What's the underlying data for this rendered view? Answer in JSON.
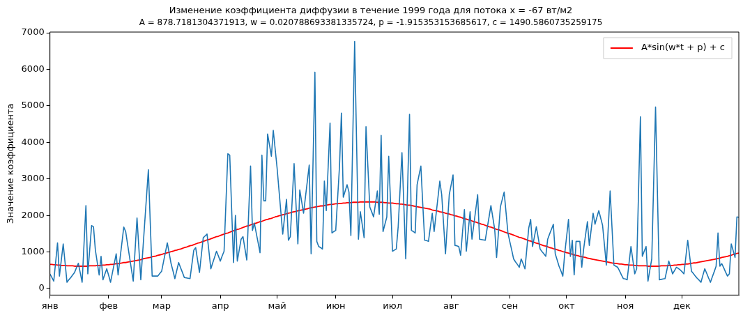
{
  "chart_data": {
    "type": "line",
    "title": "Изменение коэффициента диффузии в течение 1999 года для потока x = -67 вт/м2",
    "subtitle": "A = 878.7181304371913, w = 0.020788693381335724, p = -1.915353153685617, c = 1490.5860735259175",
    "ylabel": "Значение коэффициента",
    "legend": "top right",
    "grid": false,
    "categories": [
      "янв",
      null,
      null,
      null,
      null,
      null,
      null,
      null,
      null,
      null,
      null,
      null,
      null,
      null,
      null,
      null,
      null,
      null,
      null,
      null,
      null,
      null,
      null,
      null,
      null,
      null,
      null,
      null,
      null,
      null,
      null,
      "фев",
      null,
      null,
      null,
      null,
      null,
      null,
      null,
      null,
      null,
      null,
      null,
      null,
      null,
      null,
      null,
      null,
      null,
      null,
      null,
      null,
      null,
      null,
      null,
      null,
      null,
      null,
      null,
      "мар",
      null,
      null,
      null,
      null,
      null,
      null,
      null,
      null,
      null,
      null,
      null,
      null,
      null,
      null,
      null,
      null,
      null,
      null,
      null,
      null,
      null,
      null,
      null,
      null,
      null,
      null,
      null,
      null,
      null,
      null,
      "апр",
      null,
      null,
      null,
      null,
      null,
      null,
      null,
      null,
      null,
      null,
      null,
      null,
      null,
      null,
      null,
      null,
      null,
      null,
      null,
      null,
      null,
      null,
      null,
      null,
      null,
      null,
      null,
      null,
      null,
      "май",
      null,
      null,
      null,
      null,
      null,
      null,
      null,
      null,
      null,
      null,
      null,
      null,
      null,
      null,
      null,
      null,
      null,
      null,
      null,
      null,
      null,
      null,
      null,
      null,
      null,
      null,
      null,
      null,
      null,
      null,
      "июн",
      null,
      null,
      null,
      null,
      null,
      null,
      null,
      null,
      null,
      null,
      null,
      null,
      null,
      null,
      null,
      null,
      null,
      null,
      null,
      null,
      null,
      null,
      null,
      null,
      null,
      null,
      null,
      null,
      null,
      "июл",
      null,
      null,
      null,
      null,
      null,
      null,
      null,
      null,
      null,
      null,
      null,
      null,
      null,
      null,
      null,
      null,
      null,
      null,
      null,
      null,
      null,
      null,
      null,
      null,
      null,
      null,
      null,
      null,
      null,
      null,
      "авг",
      null,
      null,
      null,
      null,
      null,
      null,
      null,
      null,
      null,
      null,
      null,
      null,
      null,
      null,
      null,
      null,
      null,
      null,
      null,
      null,
      null,
      null,
      null,
      null,
      null,
      null,
      null,
      null,
      null,
      null,
      "сен",
      null,
      null,
      null,
      null,
      null,
      null,
      null,
      null,
      null,
      null,
      null,
      null,
      null,
      null,
      null,
      null,
      null,
      null,
      null,
      null,
      null,
      null,
      null,
      null,
      null,
      null,
      null,
      null,
      null,
      "окт",
      null,
      null,
      null,
      null,
      null,
      null,
      null,
      null,
      null,
      null,
      null,
      null,
      null,
      null,
      null,
      null,
      null,
      null,
      null,
      null,
      null,
      null,
      null,
      null,
      null,
      null,
      null,
      null,
      null,
      null,
      "ноя",
      null,
      null,
      null,
      null,
      null,
      null,
      null,
      null,
      null,
      null,
      null,
      null,
      null,
      null,
      null,
      null,
      null,
      null,
      null,
      null,
      null,
      null,
      null,
      null,
      null,
      null,
      null,
      null,
      null,
      "дек",
      null,
      null,
      null,
      null,
      null,
      null,
      null,
      null,
      null,
      null,
      null,
      null,
      null,
      null,
      null,
      null,
      null,
      null,
      null,
      null,
      null,
      null,
      null,
      null,
      null,
      null,
      null,
      null,
      null,
      null
    ],
    "ylim": [
      -180,
      7020
    ],
    "yticks": [
      0,
      1000,
      2000,
      3000,
      4000,
      5000,
      6000,
      7000
    ],
    "series": [
      {
        "color": "#1f77b4",
        "values": [
          400,
          300,
          200,
          720,
          1250,
          340,
          780,
          1220,
          700,
          170,
          240,
          300,
          370,
          440,
          570,
          690,
          430,
          170,
          1220,
          2270,
          400,
          1060,
          1720,
          1690,
          1050,
          710,
          370,
          880,
          240,
          390,
          540,
          360,
          170,
          430,
          690,
          950,
          370,
          810,
          1240,
          1680,
          1560,
          1220,
          880,
          540,
          200,
          1070,
          1930,
          1090,
          240,
          990,
          1750,
          2500,
          3250,
          1800,
          340,
          340,
          340,
          340,
          410,
          470,
          730,
          990,
          1250,
          970,
          680,
          480,
          270,
          490,
          710,
          570,
          440,
          300,
          290,
          280,
          270,
          660,
          1050,
          1120,
          780,
          440,
          920,
          1390,
          1440,
          1490,
          1020,
          540,
          700,
          860,
          1020,
          890,
          750,
          890,
          1020,
          2360,
          3690,
          3650,
          2180,
          710,
          2000,
          750,
          1050,
          1350,
          1420,
          1100,
          780,
          2070,
          3350,
          1590,
          1790,
          1520,
          1250,
          980,
          3650,
          2400,
          2400,
          4230,
          3930,
          3620,
          4330,
          3820,
          3310,
          2700,
          2100,
          1490,
          1970,
          2440,
          1320,
          1420,
          2420,
          3420,
          2320,
          1220,
          2700,
          2380,
          2060,
          2500,
          2940,
          3380,
          950,
          3440,
          5920,
          1290,
          1150,
          1120,
          1080,
          2940,
          2130,
          3330,
          4530,
          1520,
          1560,
          1590,
          2470,
          3350,
          4800,
          2500,
          2670,
          2840,
          2640,
          1450,
          4110,
          6760,
          4060,
          1350,
          2100,
          1750,
          1390,
          4430,
          3330,
          2230,
          2100,
          1960,
          2320,
          2670,
          2030,
          4190,
          1560,
          1760,
          1960,
          3620,
          2320,
          1020,
          1050,
          1080,
          1690,
          2710,
          3720,
          2270,
          810,
          2790,
          4770,
          1590,
          1560,
          1520,
          2840,
          3100,
          3350,
          2300,
          1320,
          1310,
          1290,
          1680,
          2060,
          1560,
          2020,
          2480,
          2940,
          2570,
          1760,
          950,
          1760,
          2570,
          2840,
          3110,
          1180,
          1170,
          1150,
          910,
          1540,
          2160,
          1020,
          1560,
          2100,
          1350,
          1760,
          2160,
          2570,
          1350,
          1340,
          1330,
          1320,
          1640,
          1950,
          2270,
          1950,
          1620,
          850,
          1540,
          2230,
          2440,
          2640,
          2080,
          1520,
          1280,
          1050,
          810,
          730,
          660,
          580,
          810,
          680,
          540,
          1100,
          1660,
          1890,
          1150,
          1420,
          1690,
          1390,
          1080,
          1010,
          950,
          880,
          1350,
          1490,
          1620,
          1760,
          950,
          780,
          610,
          480,
          340,
          950,
          1420,
          1890,
          880,
          1320,
          370,
          1290,
          1290,
          1290,
          580,
          1080,
          1460,
          1830,
          1180,
          1620,
          2060,
          1760,
          1950,
          2130,
          1930,
          1730,
          1190,
          640,
          1660,
          2670,
          1660,
          640,
          610,
          580,
          480,
          370,
          270,
          260,
          240,
          700,
          1150,
          780,
          400,
          540,
          2620,
          4700,
          880,
          1020,
          1150,
          200,
          510,
          810,
          2890,
          4970,
          2610,
          240,
          250,
          260,
          270,
          510,
          750,
          580,
          400,
          490,
          580,
          550,
          510,
          460,
          400,
          860,
          1320,
          900,
          470,
          410,
          340,
          280,
          230,
          170,
          360,
          540,
          420,
          290,
          170,
          320,
          460,
          610,
          1520,
          610,
          680,
          570,
          450,
          340,
          400,
          1220,
          1040,
          850,
          1960,
          1950
        ]
      },
      {
        "name": "A*sin(w*t + p) + c",
        "color": "#ff0000",
        "values": [
          660,
          660,
          650,
          650,
          640,
          640,
          630,
          630,
          630,
          620,
          620,
          620,
          620,
          610,
          610,
          610,
          610,
          610,
          610,
          610,
          610,
          620,
          620,
          620,
          620,
          630,
          630,
          630,
          640,
          640,
          650,
          650,
          660,
          660,
          670,
          680,
          680,
          690,
          700,
          710,
          710,
          720,
          730,
          740,
          750,
          760,
          770,
          780,
          790,
          810,
          820,
          830,
          840,
          850,
          870,
          880,
          890,
          910,
          920,
          930,
          950,
          960,
          980,
          990,
          1010,
          1020,
          1040,
          1050,
          1070,
          1080,
          1100,
          1120,
          1130,
          1150,
          1170,
          1180,
          1200,
          1220,
          1240,
          1250,
          1270,
          1290,
          1310,
          1330,
          1340,
          1360,
          1380,
          1400,
          1420,
          1430,
          1450,
          1470,
          1490,
          1510,
          1520,
          1540,
          1560,
          1580,
          1600,
          1620,
          1630,
          1650,
          1670,
          1690,
          1710,
          1720,
          1740,
          1760,
          1770,
          1790,
          1810,
          1830,
          1840,
          1860,
          1880,
          1890,
          1910,
          1920,
          1940,
          1960,
          1970,
          1990,
          2000,
          2020,
          2030,
          2050,
          2060,
          2070,
          2090,
          2100,
          2110,
          2130,
          2140,
          2150,
          2160,
          2170,
          2180,
          2200,
          2210,
          2220,
          2230,
          2240,
          2250,
          2260,
          2260,
          2270,
          2280,
          2290,
          2300,
          2300,
          2310,
          2320,
          2320,
          2330,
          2330,
          2340,
          2340,
          2350,
          2350,
          2350,
          2360,
          2360,
          2360,
          2360,
          2370,
          2370,
          2370,
          2370,
          2370,
          2370,
          2370,
          2370,
          2370,
          2360,
          2360,
          2360,
          2360,
          2350,
          2350,
          2340,
          2340,
          2340,
          2330,
          2320,
          2320,
          2310,
          2310,
          2300,
          2290,
          2280,
          2280,
          2270,
          2260,
          2250,
          2240,
          2230,
          2220,
          2210,
          2200,
          2190,
          2180,
          2170,
          2150,
          2140,
          2130,
          2120,
          2100,
          2090,
          2080,
          2060,
          2050,
          2040,
          2020,
          2010,
          1990,
          1980,
          1960,
          1950,
          1930,
          1910,
          1900,
          1880,
          1870,
          1850,
          1830,
          1820,
          1800,
          1780,
          1760,
          1750,
          1730,
          1710,
          1690,
          1680,
          1660,
          1640,
          1620,
          1610,
          1590,
          1570,
          1550,
          1530,
          1510,
          1500,
          1480,
          1460,
          1440,
          1420,
          1400,
          1390,
          1370,
          1350,
          1330,
          1310,
          1300,
          1280,
          1260,
          1240,
          1230,
          1210,
          1190,
          1170,
          1160,
          1140,
          1120,
          1110,
          1090,
          1080,
          1060,
          1040,
          1030,
          1010,
          1000,
          980,
          970,
          950,
          940,
          920,
          910,
          900,
          880,
          870,
          860,
          850,
          830,
          820,
          810,
          800,
          790,
          780,
          770,
          760,
          750,
          740,
          730,
          720,
          710,
          700,
          690,
          690,
          680,
          670,
          670,
          660,
          650,
          650,
          640,
          640,
          640,
          630,
          630,
          620,
          620,
          620,
          620,
          620,
          610,
          610,
          610,
          610,
          610,
          610,
          610,
          620,
          620,
          620,
          620,
          630,
          630,
          630,
          640,
          640,
          650,
          650,
          660,
          660,
          670,
          670,
          680,
          690,
          700,
          700,
          710,
          720,
          730,
          740,
          750,
          760,
          770,
          780,
          790,
          800,
          810,
          820,
          830,
          850,
          860,
          870,
          880,
          900,
          910,
          930,
          940,
          960,
          970
        ]
      }
    ]
  }
}
